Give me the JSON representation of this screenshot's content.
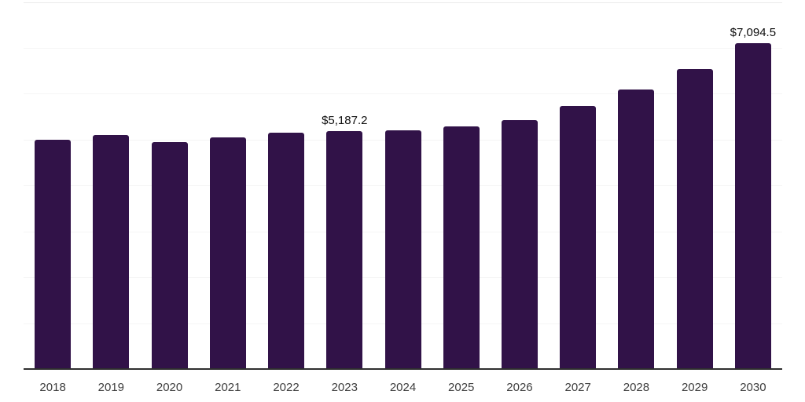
{
  "chart_data": {
    "type": "bar",
    "title": "",
    "xlabel": "",
    "ylabel": "",
    "categories": [
      "2018",
      "2019",
      "2020",
      "2021",
      "2022",
      "2023",
      "2024",
      "2025",
      "2026",
      "2027",
      "2028",
      "2029",
      "2030"
    ],
    "values": [
      5000,
      5100,
      4950,
      5050,
      5150,
      5187.2,
      5210,
      5290,
      5430,
      5730,
      6100,
      6545,
      7094.5
    ],
    "data_labels": [
      {
        "category": "2023",
        "text": "$5,187.2"
      },
      {
        "category": "2030",
        "text": "$7,094.5"
      }
    ],
    "note": "Only the 2023 and 2030 bars carry printed data labels; all other values are estimated from the unlabeled horizontal gridlines (interval = 1000).",
    "ylim": [
      0,
      8000
    ],
    "gridline_interval": 1000,
    "grid": "horizontal gridlines only, very light gray; no y-axis tick labels; topmost gridline slightly darker",
    "legend": "none",
    "colors": {
      "bar": "#311248",
      "axis_line": "#2f2f2f",
      "gridline": "#f5f5f5",
      "gridline_top": "#ebebeb",
      "tick_label": "#3d3d3d",
      "data_label": "#0d0d0d",
      "background": "#ffffff"
    }
  }
}
